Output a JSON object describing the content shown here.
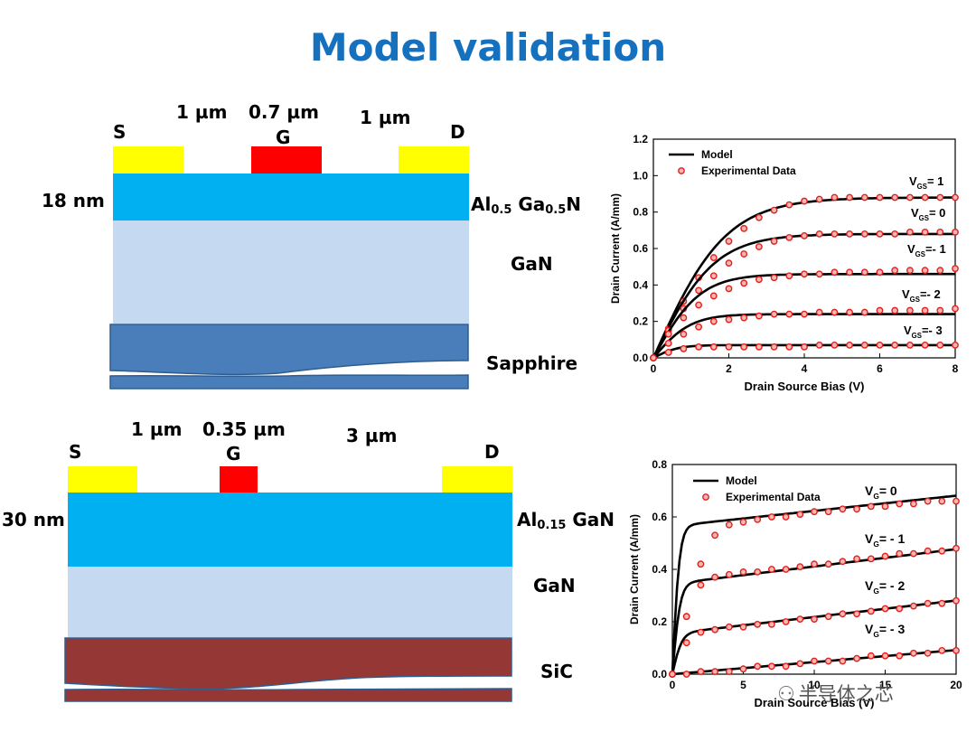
{
  "title": "Model validation",
  "device1": {
    "labels": {
      "source": "S",
      "gate": "G",
      "drain": "D",
      "sg_gap": "1 µm",
      "gate_len": "0.7 µm",
      "gd_gap": "1 µm",
      "barrier_thickness": "18 nm",
      "barrier_al": "Al",
      "barrier_al_sub": "0.5",
      "barrier_ga": " Ga",
      "barrier_ga_sub": "0.5",
      "barrier_n": "N",
      "channel": "GaN",
      "substrate": "Sapphire"
    },
    "colors": {
      "contact": "#ffff00",
      "gate": "#ff0000",
      "barrier": "#00b0f0",
      "channel": "#c5d9f1",
      "substrate": "#4a7ebb"
    }
  },
  "device2": {
    "labels": {
      "source": "S",
      "gate": "G",
      "drain": "D",
      "sg_gap": "1 µm",
      "gate_len": "0.35 µm",
      "gd_gap": "3 µm",
      "barrier_thickness": "30 nm",
      "barrier_al": "Al",
      "barrier_al_sub": "0.15",
      "barrier_rest": " GaN",
      "channel": "GaN",
      "substrate": "SiC"
    },
    "colors": {
      "contact": "#ffff00",
      "gate": "#ff0000",
      "barrier": "#00b0f0",
      "channel": "#c5d9f1",
      "substrate": "#953735"
    }
  },
  "watermark": {
    "icon": "wechat-icon",
    "text": "半导体之芯"
  },
  "chart_data": [
    {
      "type": "line",
      "xlabel": "Drain Source Bias (V)",
      "ylabel": "Drain Current (A/mm)",
      "xlim": [
        0,
        8
      ],
      "ylim": [
        0,
        1.2
      ],
      "xticks": [
        "0",
        "2",
        "4",
        "6",
        "8"
      ],
      "yticks": [
        "0.0",
        "0.2",
        "0.4",
        "0.6",
        "0.8",
        "1.0",
        "1.2"
      ],
      "legend": [
        "Model",
        "Experimental Data"
      ],
      "legend_position": "top-left",
      "colors": {
        "model": "#000000",
        "experimental": "#e0201c"
      },
      "series": [
        {
          "name": "VGS= 1",
          "label_main": "V",
          "label_sub": "GS",
          "label_rest": "= 1",
          "sat": 0.88,
          "k": 0.52,
          "x": [
            0.0,
            0.4,
            0.8,
            1.2,
            1.6,
            2.0,
            2.4,
            2.8,
            3.2,
            3.6,
            4.0,
            4.4,
            4.8,
            5.2,
            5.6,
            6.0,
            6.4,
            6.8,
            7.2,
            7.6,
            8.0
          ],
          "y": [
            0.0,
            0.16,
            0.31,
            0.44,
            0.55,
            0.64,
            0.71,
            0.77,
            0.81,
            0.84,
            0.86,
            0.87,
            0.88,
            0.88,
            0.88,
            0.88,
            0.88,
            0.88,
            0.88,
            0.88,
            0.88
          ]
        },
        {
          "name": "VGS= 0",
          "label_main": "V",
          "label_sub": "GS",
          "label_rest": "= 0",
          "sat": 0.68,
          "k": 0.62,
          "x": [
            0.0,
            0.4,
            0.8,
            1.2,
            1.6,
            2.0,
            2.4,
            2.8,
            3.2,
            3.6,
            4.0,
            4.4,
            4.8,
            5.2,
            5.6,
            6.0,
            6.4,
            6.8,
            7.2,
            7.6,
            8.0
          ],
          "y": [
            0.0,
            0.15,
            0.27,
            0.37,
            0.45,
            0.52,
            0.57,
            0.61,
            0.64,
            0.66,
            0.67,
            0.68,
            0.68,
            0.68,
            0.68,
            0.68,
            0.68,
            0.69,
            0.69,
            0.69,
            0.69
          ]
        },
        {
          "name": "VGS=- 1",
          "label_main": "V",
          "label_sub": "GS",
          "label_rest": "=- 1",
          "sat": 0.46,
          "k": 0.8,
          "x": [
            0.0,
            0.4,
            0.8,
            1.2,
            1.6,
            2.0,
            2.4,
            2.8,
            3.2,
            3.6,
            4.0,
            4.4,
            4.8,
            5.2,
            5.6,
            6.0,
            6.4,
            6.8,
            7.2,
            7.6,
            8.0
          ],
          "y": [
            0.0,
            0.13,
            0.22,
            0.29,
            0.34,
            0.38,
            0.41,
            0.43,
            0.44,
            0.45,
            0.46,
            0.46,
            0.47,
            0.47,
            0.47,
            0.47,
            0.48,
            0.48,
            0.48,
            0.48,
            0.49
          ]
        },
        {
          "name": "VGS=- 2",
          "label_main": "V",
          "label_sub": "GS",
          "label_rest": "=- 2",
          "sat": 0.24,
          "k": 1.0,
          "x": [
            0.0,
            0.4,
            0.8,
            1.2,
            1.6,
            2.0,
            2.4,
            2.8,
            3.2,
            3.6,
            4.0,
            4.4,
            4.8,
            5.2,
            5.6,
            6.0,
            6.4,
            6.8,
            7.2,
            7.6,
            8.0
          ],
          "y": [
            0.0,
            0.08,
            0.13,
            0.17,
            0.2,
            0.21,
            0.22,
            0.23,
            0.24,
            0.24,
            0.24,
            0.25,
            0.25,
            0.25,
            0.25,
            0.26,
            0.26,
            0.26,
            0.26,
            0.26,
            0.27
          ]
        },
        {
          "name": "VGS=- 3",
          "label_main": "V",
          "label_sub": "GS",
          "label_rest": "=- 3",
          "sat": 0.07,
          "k": 1.5,
          "x": [
            0.0,
            0.4,
            0.8,
            1.2,
            1.6,
            2.0,
            2.4,
            2.8,
            3.2,
            3.6,
            4.0,
            4.4,
            4.8,
            5.2,
            5.6,
            6.0,
            6.4,
            6.8,
            7.2,
            7.6,
            8.0
          ],
          "y": [
            0.0,
            0.03,
            0.05,
            0.06,
            0.06,
            0.06,
            0.06,
            0.06,
            0.06,
            0.06,
            0.06,
            0.07,
            0.07,
            0.07,
            0.07,
            0.07,
            0.07,
            0.07,
            0.07,
            0.07,
            0.07
          ]
        }
      ]
    },
    {
      "type": "line",
      "xlabel": "Drain Source Bias (V)",
      "ylabel": "Drain Current (A/mm)",
      "xlim": [
        0,
        20
      ],
      "ylim": [
        0,
        0.8
      ],
      "xticks": [
        "0",
        "5",
        "10",
        "15",
        "20"
      ],
      "yticks": [
        "0.0",
        "0.2",
        "0.4",
        "0.6",
        "0.8"
      ],
      "legend": [
        "Model",
        "Experimental Data"
      ],
      "legend_position": "top-left",
      "colors": {
        "model": "#000000",
        "experimental": "#e0201c"
      },
      "series": [
        {
          "name": "VG= 0",
          "label_main": "V",
          "label_sub": "G",
          "label_rest": "= 0",
          "knee": 0.565,
          "slope": 0.0058,
          "k": 2.0,
          "x": [
            0,
            1,
            2,
            3,
            4,
            5,
            6,
            7,
            8,
            9,
            10,
            11,
            12,
            13,
            14,
            15,
            16,
            17,
            18,
            19,
            20
          ],
          "y": [
            0.0,
            0.22,
            0.42,
            0.53,
            0.57,
            0.58,
            0.59,
            0.6,
            0.6,
            0.61,
            0.62,
            0.62,
            0.63,
            0.63,
            0.64,
            0.64,
            0.65,
            0.65,
            0.66,
            0.66,
            0.66
          ]
        },
        {
          "name": "VG= - 1",
          "label_main": "V",
          "label_sub": "G",
          "label_rest": "= - 1",
          "knee": 0.345,
          "slope": 0.0066,
          "k": 1.8,
          "x": [
            0,
            1,
            2,
            3,
            4,
            5,
            6,
            7,
            8,
            9,
            10,
            11,
            12,
            13,
            14,
            15,
            16,
            17,
            18,
            19,
            20
          ],
          "y": [
            0.0,
            0.22,
            0.34,
            0.37,
            0.38,
            0.39,
            0.39,
            0.4,
            0.4,
            0.41,
            0.42,
            0.42,
            0.43,
            0.44,
            0.44,
            0.45,
            0.46,
            0.46,
            0.47,
            0.47,
            0.48
          ]
        },
        {
          "name": "VG= - 2",
          "label_main": "V",
          "label_sub": "G",
          "label_rest": "= - 2",
          "knee": 0.155,
          "slope": 0.0063,
          "k": 1.5,
          "x": [
            0,
            1,
            2,
            3,
            4,
            5,
            6,
            7,
            8,
            9,
            10,
            11,
            12,
            13,
            14,
            15,
            16,
            17,
            18,
            19,
            20
          ],
          "y": [
            0.0,
            0.12,
            0.16,
            0.17,
            0.18,
            0.18,
            0.19,
            0.19,
            0.2,
            0.21,
            0.21,
            0.22,
            0.23,
            0.23,
            0.24,
            0.25,
            0.25,
            0.26,
            0.27,
            0.27,
            0.28
          ]
        },
        {
          "name": "VG= - 3",
          "label_main": "V",
          "label_sub": "G",
          "label_rest": "= - 3",
          "knee": 0.0,
          "slope": 0.0046,
          "k": 1.0,
          "x": [
            0,
            1,
            2,
            3,
            4,
            5,
            6,
            7,
            8,
            9,
            10,
            11,
            12,
            13,
            14,
            15,
            16,
            17,
            18,
            19,
            20
          ],
          "y": [
            0.0,
            0.0,
            0.01,
            0.01,
            0.01,
            0.02,
            0.03,
            0.03,
            0.03,
            0.04,
            0.05,
            0.05,
            0.05,
            0.06,
            0.07,
            0.07,
            0.07,
            0.08,
            0.08,
            0.09,
            0.09
          ]
        }
      ]
    }
  ]
}
